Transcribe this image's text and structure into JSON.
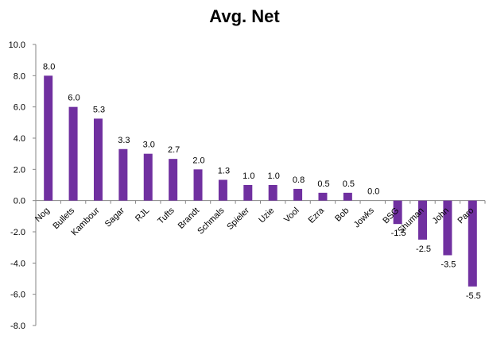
{
  "chart_data": {
    "type": "bar",
    "title": "Avg. Net",
    "xlabel": "",
    "ylabel": "",
    "ylim": [
      -8.0,
      10.0
    ],
    "y_ticks": [
      "10.0",
      "8.0",
      "6.0",
      "4.0",
      "2.0",
      "0.0",
      "-2.0",
      "-4.0",
      "-6.0",
      "-8.0"
    ],
    "grid": false,
    "legend": "none",
    "bar_color": "#7030A0",
    "categories": [
      "Nog",
      "Bullets",
      "Kambour",
      "Sagar",
      "RJL",
      "Tufts",
      "Brandt",
      "Schmals",
      "Spieler",
      "Uzie",
      "Vool",
      "Ezra",
      "Bob",
      "Jowks",
      "BSG",
      "Shuman",
      "John",
      "Paro"
    ],
    "values": [
      8.0,
      6.0,
      5.25,
      3.3,
      3.0,
      2.67,
      2.0,
      1.33,
      1.0,
      1.0,
      0.75,
      0.5,
      0.5,
      0.0,
      -1.5,
      -2.5,
      -3.5,
      -5.5
    ],
    "data_labels": [
      "8.0",
      "6.0",
      "5.3",
      "3.3",
      "3.0",
      "2.7",
      "2.0",
      "1.3",
      "1.0",
      "1.0",
      "0.8",
      "0.5",
      "0.5",
      "0.0",
      "-1.5",
      "-2.5",
      "-3.5",
      "-5.5"
    ]
  }
}
